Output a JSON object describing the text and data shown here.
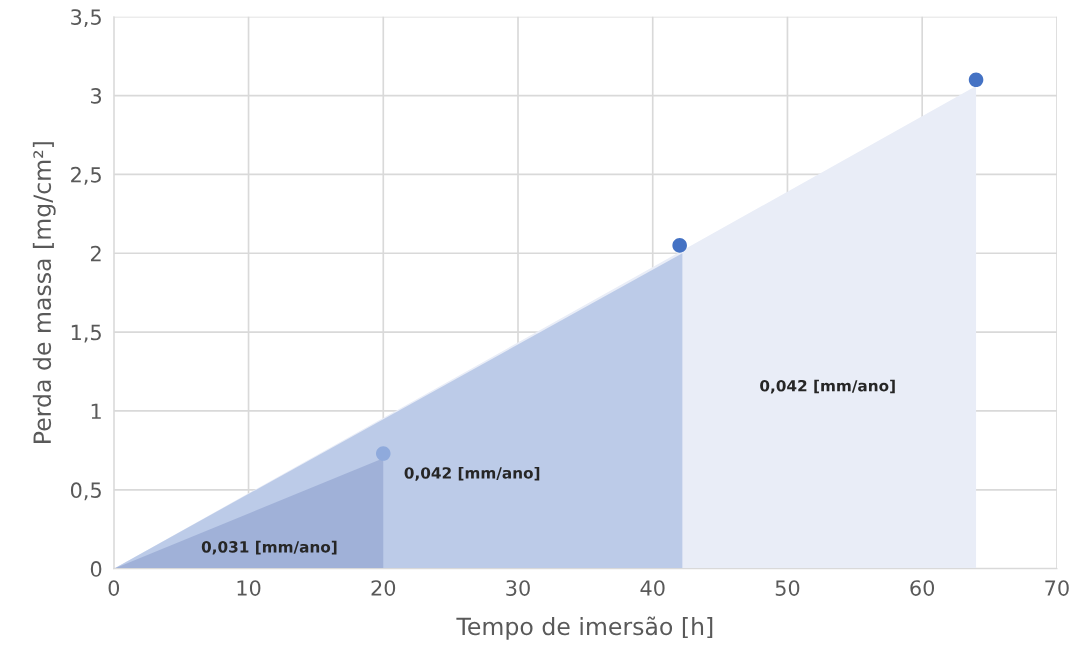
{
  "chart_data": {
    "type": "area",
    "xlabel": "Tempo de imersão [h]",
    "ylabel": "Perda de massa [mg/cm²]",
    "series": [
      {
        "color": "#e9edf7",
        "x": [
          0,
          64
        ],
        "values": [
          0,
          3.06
        ]
      },
      {
        "color": "#bccbe8",
        "x": [
          0,
          42.2
        ],
        "values": [
          0,
          2.0
        ]
      },
      {
        "color": "#a0b1d8",
        "x": [
          0,
          20
        ],
        "values": [
          0,
          0.7
        ]
      },
      {
        "type": "scatter",
        "marker": "circle",
        "x": [
          20,
          42,
          64
        ],
        "values": [
          0.73,
          2.05,
          3.1
        ],
        "colors": [
          "#8faadc",
          "#4472c4",
          "#4472c4"
        ]
      }
    ],
    "annotations": [
      "0,031 [mm/ano]",
      "0,042 [mm/ano]",
      "0,042 [mm/ano]"
    ],
    "xlim": [
      0,
      70
    ],
    "xticks": [
      0,
      10,
      20,
      30,
      40,
      50,
      60,
      70
    ],
    "ylim": [
      0,
      3.5
    ],
    "yticks": [
      0,
      {
        "value": 0.5,
        "label": "0,5"
      },
      1,
      {
        "value": 1.5,
        "label": "1,5"
      },
      2,
      {
        "value": 2.5,
        "label": "2,5"
      },
      3,
      {
        "value": 3.5,
        "label": "3,5"
      }
    ],
    "grid": true
  }
}
